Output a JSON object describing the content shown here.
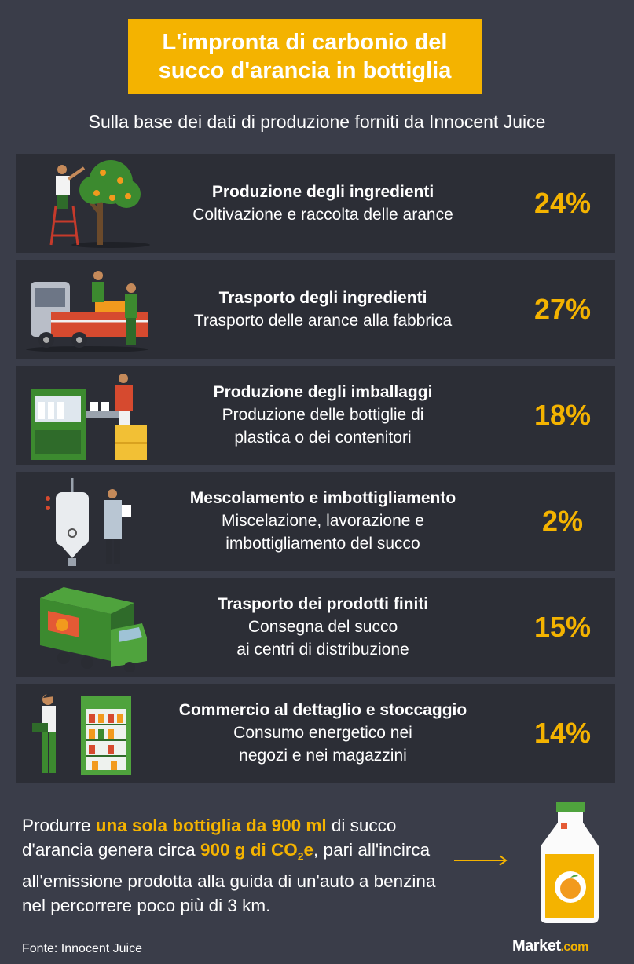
{
  "title": "L'impronta di carbonio del\nsucco d'arancia in bottiglia",
  "subtitle": "Sulla base dei dati di produzione forniti da Innocent Juice",
  "rows": [
    {
      "heading": "Produzione degli ingredienti",
      "description": "Coltivazione e raccolta delle arance",
      "percent": "24%"
    },
    {
      "heading": "Trasporto degli ingredienti",
      "description": "Trasporto delle arance alla fabbrica",
      "percent": "27%"
    },
    {
      "heading": "Produzione degli imballaggi",
      "description": "Produzione delle bottiglie di\nplastica o dei contenitori",
      "percent": "18%"
    },
    {
      "heading": "Mescolamento e imbottigliamento",
      "description": "Miscelazione, lavorazione e\nimbottigliamento del succo",
      "percent": "2%"
    },
    {
      "heading": "Trasporto dei prodotti finiti",
      "description": "Consegna del succo\nai centri di distribuzione",
      "percent": "15%"
    },
    {
      "heading": "Commercio al dettaglio e stoccaggio",
      "description": "Consumo energetico nei\nnegozi e nei magazzini",
      "percent": "14%"
    }
  ],
  "bottom": {
    "p1": "Produrre ",
    "h1": "una sola bottiglia da 900 ml",
    "p2": " di succo d'arancia genera circa ",
    "h2": "900 g di CO",
    "h2sub": "2",
    "h2end": "e",
    "p3": ", pari all'incirca all'emissione prodotta alla guida di un'auto a benzina nel percorrere poco più di 3 km."
  },
  "source": "Fonte: Innocent Juice",
  "brand": {
    "name": "Market",
    "suffix": ".com"
  },
  "icons": [
    "orange-tree-picker-icon",
    "truck-loading-oranges-icon",
    "bottle-packaging-machine-icon",
    "mixing-tank-worker-icon",
    "delivery-truck-icon",
    "shopper-shelf-icon",
    "juice-bottle-icon"
  ],
  "colors": {
    "background": "#3a3d49",
    "row": "#2c2e36",
    "accent": "#f4b300",
    "text": "#ffffff"
  }
}
